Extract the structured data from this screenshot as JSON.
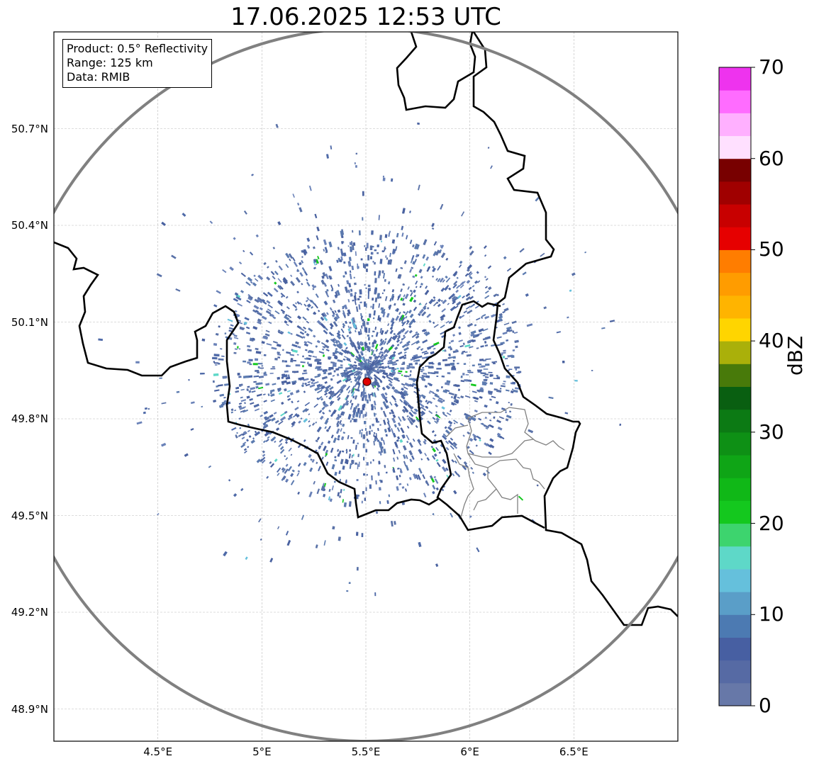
{
  "title": "17.06.2025 12:53 UTC",
  "info_box": {
    "product": "Product: 0.5° Reflectivity",
    "range": "Range: 125 km",
    "data": "Data: RMIB"
  },
  "map": {
    "lon_range": [
      4.0,
      7.0
    ],
    "lat_range": [
      48.8,
      51.0
    ],
    "lat_ticks": [
      "50.7°N",
      "50.4°N",
      "50.1°N",
      "49.8°N",
      "49.5°N",
      "49.2°N",
      "48.9°N"
    ],
    "lat_tick_values": [
      50.7,
      50.4,
      50.1,
      49.8,
      49.5,
      49.2,
      48.9
    ],
    "lon_ticks": [
      "4.5°E",
      "5°E",
      "5.5°E",
      "6°E",
      "6.5°E"
    ],
    "lon_tick_values": [
      4.5,
      5.0,
      5.5,
      6.0,
      6.5
    ],
    "radar_site": {
      "lon": 5.505,
      "lat": 49.915
    },
    "range_ring_km": 125,
    "gridlines": true,
    "colors": {
      "range_ring": "#808080",
      "border": "#000000",
      "admin_border": "#808080",
      "radar_site": "#e00000",
      "echo_main": "#5a72a8"
    }
  },
  "colorbar": {
    "label": "dBZ",
    "min": 0,
    "max": 70,
    "step": 2.5,
    "tick_labels": [
      "70",
      "60",
      "50",
      "40",
      "30",
      "20",
      "10",
      "0"
    ],
    "tick_values": [
      70,
      60,
      50,
      40,
      30,
      20,
      10,
      0
    ],
    "colors": [
      "#6778a8",
      "#566aa4",
      "#475fa2",
      "#4c7ab2",
      "#5a9ec8",
      "#65c0dc",
      "#5ed8c8",
      "#3dd46e",
      "#14c81e",
      "#10b817",
      "#0fa516",
      "#0e9015",
      "#0c7a14",
      "#095f11",
      "#487a0a",
      "#aab00a",
      "#ffd500",
      "#ffb400",
      "#ff9c00",
      "#ff7d00",
      "#e60000",
      "#c80000",
      "#a00000",
      "#780000",
      "#ffe0ff",
      "#ffb0ff",
      "#ff6cff",
      "#ee33ee"
    ]
  }
}
